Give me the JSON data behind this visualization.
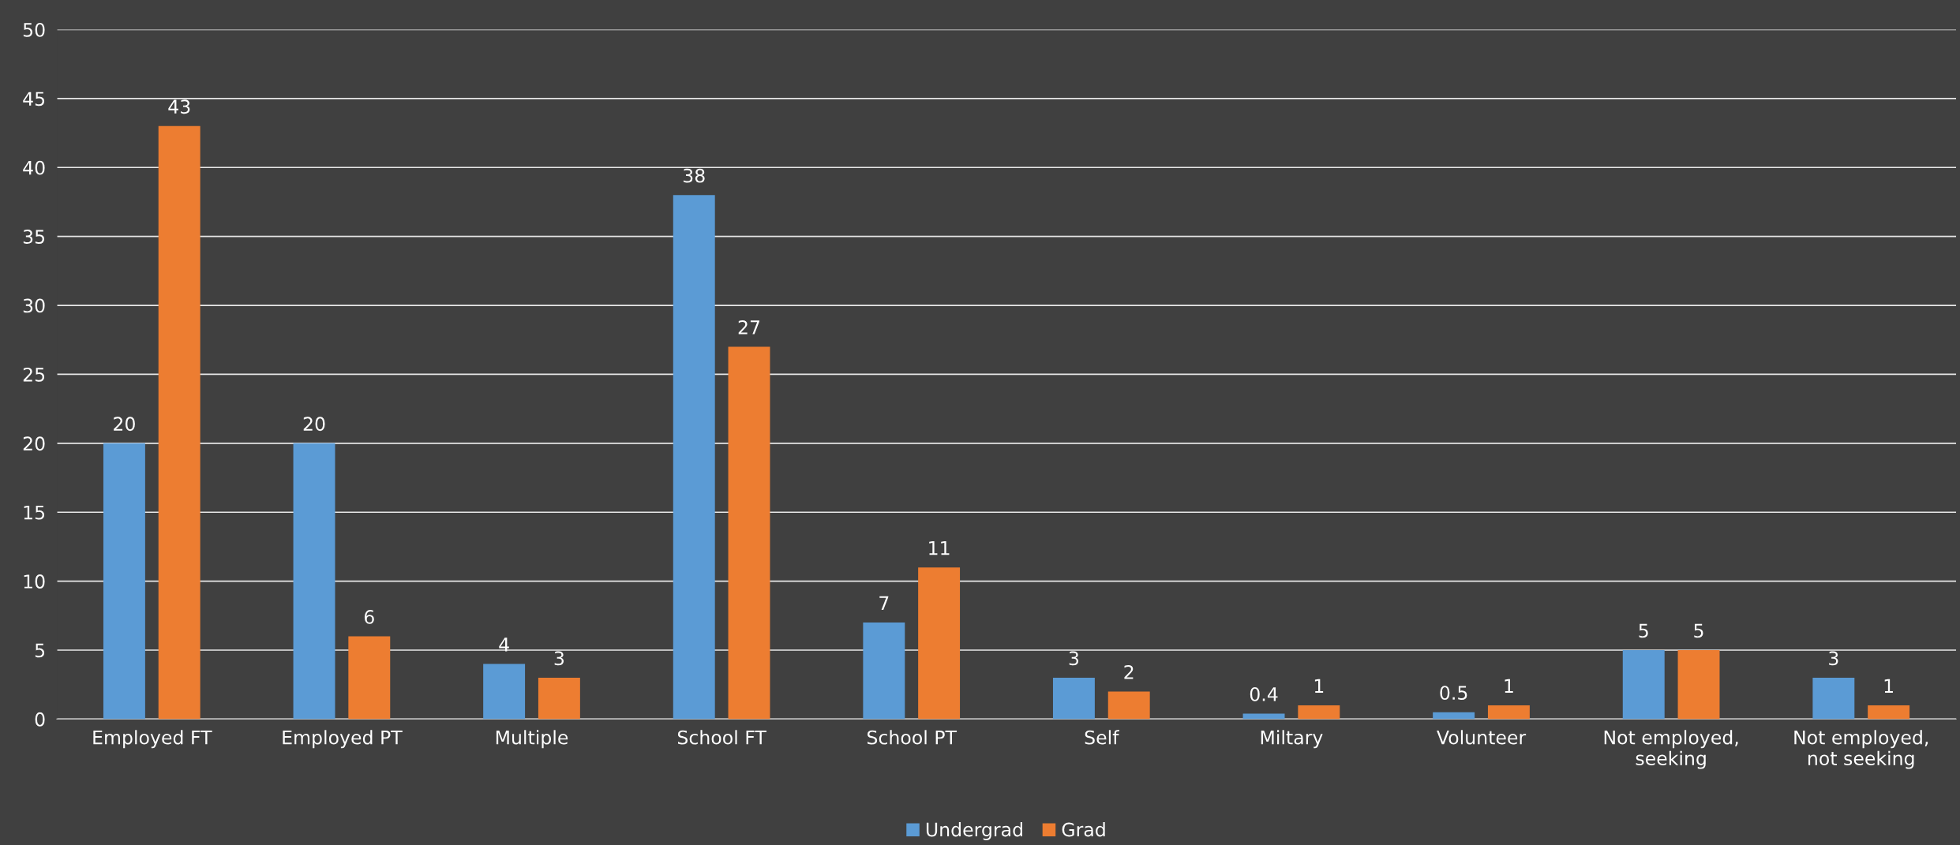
{
  "chart_data": {
    "type": "bar",
    "categories": [
      "Employed FT",
      "Employed PT",
      "Multiple",
      "School FT",
      "School PT",
      "Self",
      "Miltary",
      "Volunteer",
      "Not employed,\nseeking",
      "Not employed,\nnot seeking"
    ],
    "series": [
      {
        "name": "Undergrad",
        "color": "#5b9bd5",
        "values": [
          20,
          20,
          4,
          38,
          7,
          3,
          0.4,
          0.5,
          5,
          3
        ]
      },
      {
        "name": "Grad",
        "color": "#ed7d31",
        "values": [
          43,
          6,
          3,
          27,
          11,
          2,
          1,
          1,
          5,
          1
        ]
      }
    ],
    "ylim": [
      0,
      50
    ],
    "yticks": [
      0,
      5,
      10,
      15,
      20,
      25,
      30,
      35,
      40,
      45,
      50
    ],
    "grid": "y",
    "legend": "bottom",
    "data_labels": true
  }
}
